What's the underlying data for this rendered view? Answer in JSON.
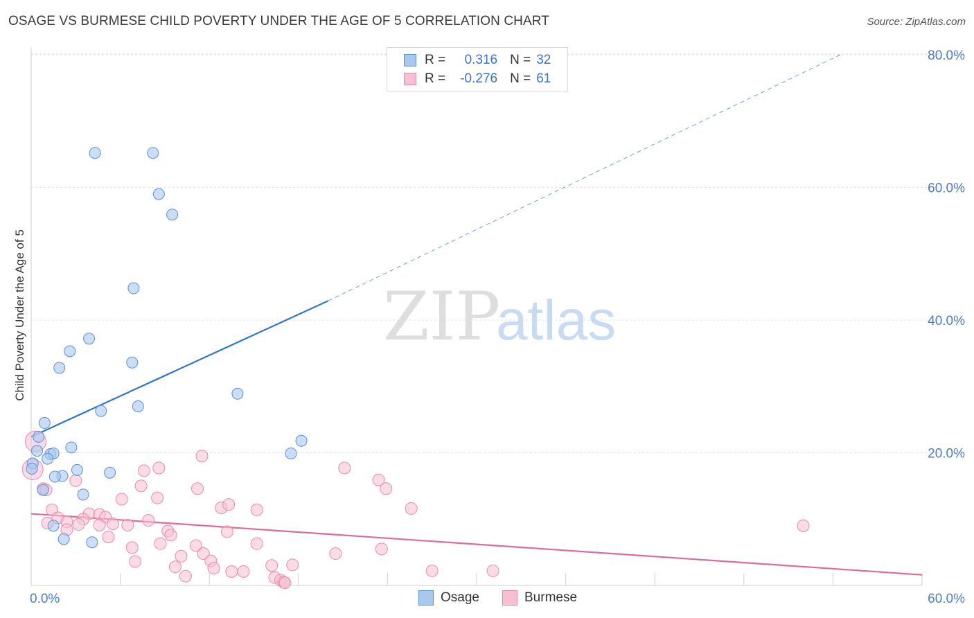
{
  "title": "OSAGE VS BURMESE CHILD POVERTY UNDER THE AGE OF 5 CORRELATION CHART",
  "source": "Source: ZipAtlas.com",
  "watermark": {
    "zip": "ZIP",
    "atlas": "atlas"
  },
  "colors": {
    "osage_fill": "#a9c8ef",
    "osage_stroke": "#5b8fd6",
    "osage_line": "#2f74d0",
    "burmese_fill": "#f7c0d2",
    "burmese_stroke": "#e989a8",
    "burmese_line": "#e0689a",
    "tick_text": "#4a7cc7",
    "grid": "#e0e0e0"
  },
  "legend": {
    "osage": {
      "r_label": "R =",
      "r_value": "0.316",
      "n_label": "N =",
      "n_value": "32"
    },
    "burmese": {
      "r_label": "R =",
      "r_value": "-0.276",
      "n_label": "N =",
      "n_value": "61"
    }
  },
  "chart_data": {
    "type": "scatter",
    "title": "OSAGE VS BURMESE CHILD POVERTY UNDER THE AGE OF 5 CORRELATION CHART",
    "xlabel": "",
    "ylabel": "Child Poverty Under the Age of 5",
    "xlim": [
      0,
      60
    ],
    "ylim": [
      0,
      80
    ],
    "x_ticks_labeled": [
      "0.0%",
      "60.0%"
    ],
    "y_ticks": [
      {
        "value": 20,
        "label": "20.0%"
      },
      {
        "value": 40,
        "label": "40.0%"
      },
      {
        "value": 60,
        "label": "60.0%"
      },
      {
        "value": 80,
        "label": "80.0%"
      }
    ],
    "grid": true,
    "legend_position": "bottom",
    "series": [
      {
        "name": "Osage",
        "points": [
          [
            4.3,
            65.2
          ],
          [
            8.2,
            65.2
          ],
          [
            8.6,
            59.0
          ],
          [
            9.5,
            55.9
          ],
          [
            6.9,
            44.8
          ],
          [
            3.9,
            37.2
          ],
          [
            2.6,
            35.3
          ],
          [
            1.9,
            32.8
          ],
          [
            6.8,
            33.6
          ],
          [
            13.9,
            28.9
          ],
          [
            7.2,
            27.0
          ],
          [
            4.7,
            26.3
          ],
          [
            0.9,
            24.5
          ],
          [
            18.2,
            21.8
          ],
          [
            0.5,
            22.4
          ],
          [
            2.7,
            20.8
          ],
          [
            0.4,
            20.3
          ],
          [
            1.3,
            19.8
          ],
          [
            1.5,
            19.9
          ],
          [
            1.1,
            19.1
          ],
          [
            17.5,
            19.9
          ],
          [
            0.1,
            18.4
          ],
          [
            0.05,
            17.6
          ],
          [
            3.1,
            17.4
          ],
          [
            5.3,
            17.0
          ],
          [
            2.1,
            16.5
          ],
          [
            1.6,
            16.4
          ],
          [
            0.8,
            14.4
          ],
          [
            3.5,
            13.7
          ],
          [
            1.5,
            9.0
          ],
          [
            2.2,
            7.0
          ],
          [
            4.1,
            6.5
          ]
        ]
      },
      {
        "name": "Burmese",
        "points": [
          [
            0.3,
            21.7
          ],
          [
            0.1,
            17.5
          ],
          [
            11.5,
            19.5
          ],
          [
            21.1,
            17.7
          ],
          [
            8.6,
            17.7
          ],
          [
            7.6,
            17.3
          ],
          [
            3.0,
            15.8
          ],
          [
            23.4,
            15.9
          ],
          [
            7.4,
            15.0
          ],
          [
            11.2,
            14.6
          ],
          [
            23.9,
            14.6
          ],
          [
            0.8,
            14.6
          ],
          [
            1.0,
            14.4
          ],
          [
            6.1,
            13.0
          ],
          [
            8.5,
            13.2
          ],
          [
            12.8,
            11.7
          ],
          [
            13.3,
            12.2
          ],
          [
            15.2,
            11.4
          ],
          [
            25.6,
            11.6
          ],
          [
            1.4,
            11.4
          ],
          [
            3.9,
            10.8
          ],
          [
            4.6,
            10.7
          ],
          [
            5.0,
            10.3
          ],
          [
            1.8,
            10.2
          ],
          [
            3.5,
            10.0
          ],
          [
            7.9,
            9.8
          ],
          [
            2.4,
            9.6
          ],
          [
            1.1,
            9.4
          ],
          [
            3.2,
            9.2
          ],
          [
            5.5,
            9.3
          ],
          [
            4.6,
            9.1
          ],
          [
            6.5,
            9.1
          ],
          [
            2.4,
            8.4
          ],
          [
            9.2,
            8.2
          ],
          [
            13.2,
            8.1
          ],
          [
            52.0,
            9.0
          ],
          [
            9.4,
            7.6
          ],
          [
            5.2,
            7.3
          ],
          [
            11.1,
            6.0
          ],
          [
            8.7,
            6.3
          ],
          [
            15.2,
            6.3
          ],
          [
            6.8,
            5.7
          ],
          [
            23.6,
            5.5
          ],
          [
            20.5,
            4.8
          ],
          [
            10.1,
            4.4
          ],
          [
            11.6,
            4.8
          ],
          [
            12.1,
            3.7
          ],
          [
            7.0,
            3.6
          ],
          [
            16.2,
            3.0
          ],
          [
            17.6,
            3.1
          ],
          [
            9.7,
            2.8
          ],
          [
            12.3,
            2.6
          ],
          [
            13.5,
            2.1
          ],
          [
            14.3,
            2.1
          ],
          [
            27.0,
            2.2
          ],
          [
            31.1,
            2.2
          ],
          [
            10.4,
            1.4
          ],
          [
            16.4,
            1.2
          ],
          [
            16.8,
            0.8
          ],
          [
            17.0,
            0.5
          ],
          [
            17.1,
            0.4
          ]
        ]
      }
    ],
    "trendlines": [
      {
        "series": "Osage",
        "x0": 0,
        "y0": 22.4,
        "x1": 20,
        "y1": 42.9,
        "dashed_to": {
          "x": 54.5,
          "y": 80.0
        }
      },
      {
        "series": "Burmese",
        "x0": 0,
        "y0": 10.8,
        "x1": 60,
        "y1": 1.6
      }
    ]
  }
}
